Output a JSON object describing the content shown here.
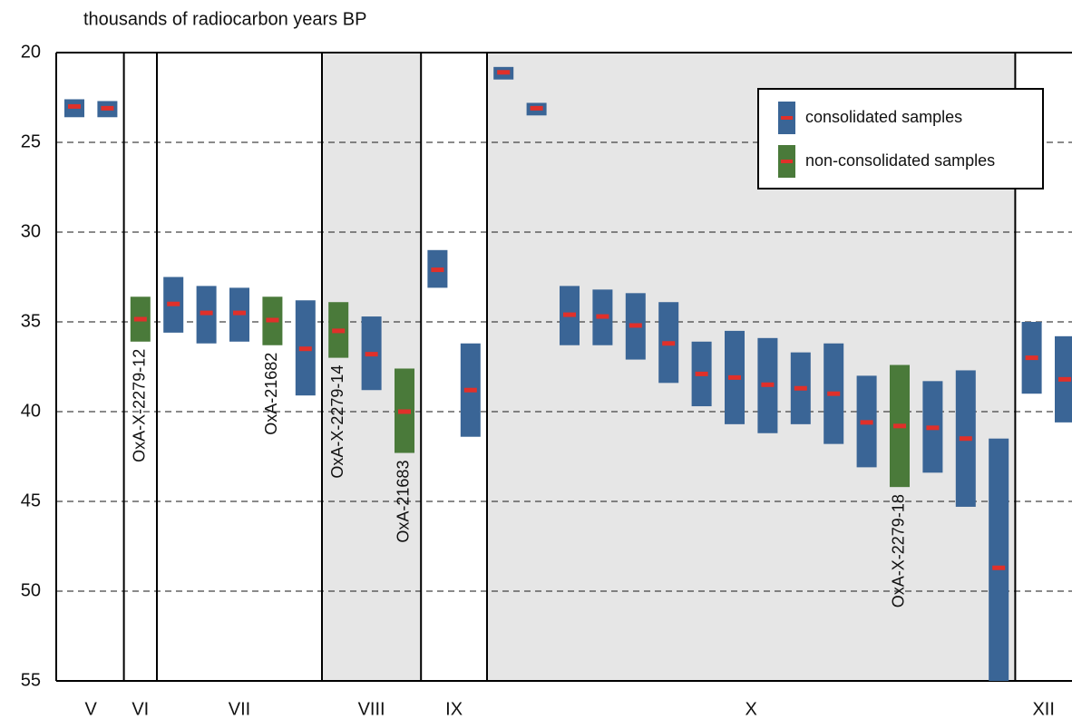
{
  "chart_data": {
    "type": "range",
    "y_label": "thousands of radiocarbon years BP",
    "y_inverted": true,
    "ylim": [
      20,
      55
    ],
    "yticks": [
      20,
      25,
      30,
      35,
      40,
      45,
      50,
      55
    ],
    "grid": true,
    "legend": "top-right",
    "mean_color": "#e0302a",
    "shade_color": "#e6e6e6",
    "categories": [
      null,
      null,
      "OxA-X-2279-12",
      null,
      null,
      null,
      "OxA-21682",
      null,
      "OxA-X-2279-14",
      null,
      "OxA-21683",
      null,
      null,
      null,
      null,
      null,
      null,
      null,
      null,
      null,
      null,
      null,
      null,
      null,
      null,
      "OxA-X-2279-18",
      null,
      null,
      null,
      null,
      null
    ],
    "layers": [
      {
        "label": "V",
        "samples": 2,
        "shaded": false
      },
      {
        "label": "VI",
        "samples": 1,
        "shaded": false
      },
      {
        "label": "VII",
        "samples": 5,
        "shaded": false
      },
      {
        "label": "VIII",
        "samples": 3,
        "shaded": true
      },
      {
        "label": "IX",
        "samples": 2,
        "shaded": false
      },
      {
        "label": "X",
        "samples": 16,
        "shaded": true
      },
      {
        "label": "XII",
        "samples": 2,
        "shaded": false
      }
    ],
    "series": [
      {
        "name": "consolidated samples",
        "color": "#3a6596",
        "low": [
          22.6,
          22.7,
          null,
          32.5,
          33.0,
          33.1,
          null,
          33.8,
          null,
          34.7,
          null,
          31.0,
          36.2,
          20.8,
          22.8,
          33.0,
          33.2,
          33.4,
          33.9,
          36.1,
          35.5,
          35.9,
          36.7,
          36.2,
          38.0,
          null,
          38.3,
          37.7,
          41.5,
          35.0,
          35.8
        ],
        "high": [
          23.6,
          23.6,
          null,
          35.6,
          36.2,
          36.1,
          null,
          39.1,
          null,
          38.8,
          null,
          33.1,
          41.4,
          21.5,
          23.5,
          36.3,
          36.3,
          37.1,
          38.4,
          39.7,
          40.7,
          41.2,
          40.7,
          41.8,
          43.1,
          null,
          43.4,
          45.3,
          55.0,
          39.0,
          40.6
        ],
        "mean": [
          23.0,
          23.1,
          null,
          34.0,
          34.5,
          34.5,
          null,
          36.5,
          null,
          36.8,
          null,
          32.1,
          38.8,
          21.1,
          23.1,
          34.6,
          34.7,
          35.2,
          36.2,
          37.9,
          38.1,
          38.5,
          38.7,
          39.0,
          40.6,
          null,
          40.9,
          41.5,
          48.7,
          37.0,
          38.2
        ]
      },
      {
        "name": "non-consolidated samples",
        "color": "#4a7a3a",
        "low": [
          null,
          null,
          33.6,
          null,
          null,
          null,
          33.6,
          null,
          33.9,
          null,
          37.6,
          null,
          null,
          null,
          null,
          null,
          null,
          null,
          null,
          null,
          null,
          null,
          null,
          null,
          null,
          37.4,
          null,
          null,
          null,
          null,
          null
        ],
        "high": [
          null,
          null,
          36.1,
          null,
          null,
          null,
          36.3,
          null,
          37.0,
          null,
          42.3,
          null,
          null,
          null,
          null,
          null,
          null,
          null,
          null,
          null,
          null,
          null,
          null,
          null,
          null,
          44.2,
          null,
          null,
          null,
          null,
          null
        ],
        "mean": [
          null,
          null,
          34.85,
          null,
          null,
          null,
          34.9,
          null,
          35.5,
          null,
          40.0,
          null,
          null,
          null,
          null,
          null,
          null,
          null,
          null,
          null,
          null,
          null,
          null,
          null,
          null,
          40.8,
          null,
          null,
          null,
          null,
          null
        ]
      }
    ]
  }
}
